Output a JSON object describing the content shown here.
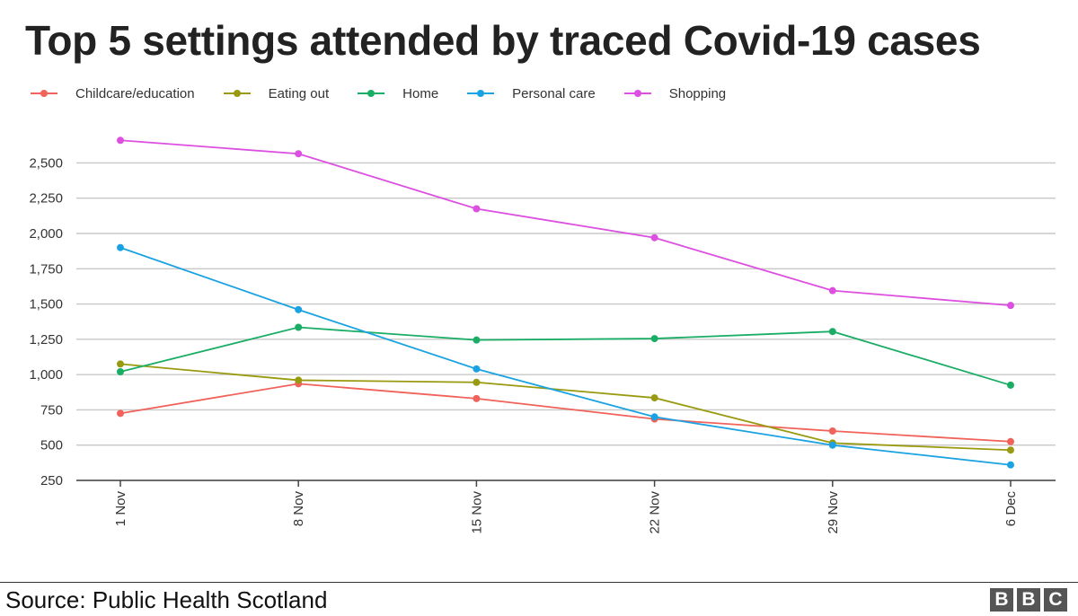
{
  "title": "Top 5 settings attended by traced Covid-19 cases",
  "source": "Source: Public Health Scotland",
  "logo": [
    "B",
    "B",
    "C"
  ],
  "chart_data": {
    "type": "line",
    "x": [
      "1 Nov",
      "8 Nov",
      "15 Nov",
      "22 Nov",
      "29 Nov",
      "6 Dec"
    ],
    "ylim": [
      250,
      2700
    ],
    "yticks": [
      250,
      500,
      750,
      1000,
      1250,
      1500,
      1750,
      2000,
      2250,
      2500
    ],
    "ytick_labels": [
      "250",
      "500",
      "750",
      "1,000",
      "1,250",
      "1,500",
      "1,750",
      "2,000",
      "2,250",
      "2,500"
    ],
    "grid": true,
    "legend_position": "top-left",
    "series": [
      {
        "name": "Childcare/education",
        "color": "#f0625a",
        "values": [
          725,
          935,
          830,
          685,
          600,
          525
        ]
      },
      {
        "name": "Eating out",
        "color": "#9a9a10",
        "values": [
          1075,
          960,
          945,
          835,
          515,
          465
        ]
      },
      {
        "name": "Home",
        "color": "#1aad65",
        "values": [
          1020,
          1335,
          1245,
          1255,
          1305,
          925
        ]
      },
      {
        "name": "Personal care",
        "color": "#1aa2e2",
        "values": [
          1900,
          1460,
          1040,
          700,
          500,
          360
        ]
      },
      {
        "name": "Shopping",
        "color": "#dc4fe0",
        "values": [
          2660,
          2565,
          2175,
          1970,
          1595,
          1490
        ]
      }
    ]
  }
}
